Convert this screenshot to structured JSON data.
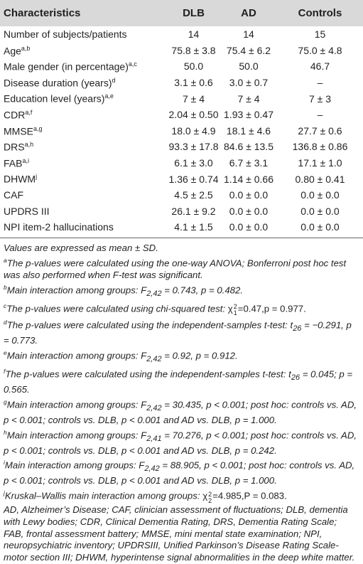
{
  "table": {
    "header": [
      "Characteristics",
      "DLB",
      "AD",
      "Controls"
    ],
    "rows": [
      {
        "label": "Number of subjects/patients",
        "cells": [
          "14",
          "14",
          "15"
        ]
      },
      {
        "label": "Age",
        "note": "a,b",
        "cells": [
          "75.8 ± 3.8",
          "75.4 ± 6.2",
          "75.0 ± 4.8"
        ]
      },
      {
        "label": "Male gender (in percentage)",
        "note": "a,c",
        "cells": [
          "50.0",
          "50.0",
          "46.7"
        ]
      },
      {
        "label": "Disease duration (years)",
        "note": "d",
        "cells": [
          "3.1 ± 0.6",
          "3.0 ± 0.7",
          "–"
        ]
      },
      {
        "label": "Education level (years)",
        "note": "a,e",
        "cells": [
          "7 ± 4",
          "7 ± 4",
          "7 ± 3"
        ]
      },
      {
        "label": "CDR",
        "note": "a,f",
        "cells": [
          "2.04 ± 0.50",
          "1.93 ± 0.47",
          "–"
        ]
      },
      {
        "label": "MMSE",
        "note": "a,g",
        "cells": [
          "18.0 ± 4.9",
          "18.1 ± 4.6",
          "27.7 ± 0.6"
        ]
      },
      {
        "label": "DRS",
        "note": "a,h",
        "cells": [
          "93.3 ± 17.8",
          "84.6 ± 13.5",
          "136.8 ± 0.86"
        ]
      },
      {
        "label": "FAB",
        "note": "a,i",
        "cells": [
          "6.1 ± 3.0",
          "6.7 ± 3.1",
          "17.1 ± 1.0"
        ]
      },
      {
        "label": "DHWM",
        "note": "j",
        "cells": [
          "1.36 ± 0.74",
          "1.14 ± 0.66",
          "0.80 ± 0.41"
        ]
      },
      {
        "label": "CAF",
        "cells": [
          "4.5 ± 2.5",
          "0.0 ± 0.0",
          "0.0 ± 0.0"
        ]
      },
      {
        "label": "UPDRS III",
        "cells": [
          "26.1 ± 9.2",
          "0.0 ± 0.0",
          "0.0 ± 0.0"
        ]
      },
      {
        "label": "NPI item-2 hallucinations",
        "cells": [
          "4.1 ± 1.5",
          "0.0 ± 0.0",
          "0.0 ± 0.0"
        ]
      }
    ]
  },
  "footnotes": [
    {
      "parts": [
        "Values are expressed as mean ± SD."
      ]
    },
    {
      "mark": "a",
      "parts": [
        "The p-values were calculated using the one-way ANOVA; Bonferroni post hoc test was also performed when F-test was significant."
      ]
    },
    {
      "mark": "b",
      "parts": [
        "Main interaction among groups: F",
        {
          "sub": "2,42"
        },
        " = 0.743, p = 0.482."
      ]
    },
    {
      "mark": "c",
      "parts": [
        "The p-values were calculated using chi-squared test: ",
        {
          "plain": "χ",
          "sup": "2",
          "sub": "1"
        },
        {
          "plain": "=0.47,p = 0.977."
        }
      ]
    },
    {
      "mark": "d",
      "parts": [
        "The p-values were calculated using the independent-samples t-test: t",
        {
          "sub": "26"
        },
        " = −0.291, p = 0.773."
      ]
    },
    {
      "mark": "e",
      "parts": [
        "Main interaction among groups: F",
        {
          "sub": "2,42"
        },
        " = 0.92, p = 0.912."
      ]
    },
    {
      "mark": "f",
      "parts": [
        "The p-values were calculated using the independent-samples t-test: t",
        {
          "sub": "26"
        },
        " = 0.045; p = 0.565."
      ]
    },
    {
      "mark": "g",
      "parts": [
        "Main interaction among groups: F",
        {
          "sub": "2,42"
        },
        " = 30.435, p < 0.001; post hoc: controls vs. AD, p < 0.001; controls vs. DLB, p < 0.001 and AD vs. DLB, p = 1.000."
      ]
    },
    {
      "mark": "h",
      "parts": [
        "Main interaction among groups: F",
        {
          "sub": "2,41"
        },
        " = 70.276, p < 0.001; post hoc: controls vs. AD, p < 0.001; controls vs. DLB, p < 0.001 and AD vs. DLB, p = 0.242."
      ]
    },
    {
      "mark": "i",
      "parts": [
        "Main interaction among groups: F",
        {
          "sub": "2,42"
        },
        " = 88.905, p < 0.001; post hoc: controls vs. AD, p < 0.001; controls vs. DLB, p < 0.001 and AD vs. DLB, p = 1.000."
      ]
    },
    {
      "mark": "j",
      "parts": [
        "Kruskal–Wallis main interaction among groups: ",
        {
          "plain": "χ",
          "sup": "2",
          "sub": "2"
        },
        {
          "plain": "=4.985,P = 0.083."
        }
      ]
    },
    {
      "parts": [
        "AD, Alzheimer’s Disease; CAF, clinician assessment of fluctuations; DLB, dementia with Lewy bodies; CDR, Clinical Dementia Rating, DRS, Dementia Rating Scale; FAB, frontal assessment battery; MMSE, mini mental state examination; NPI, neuropsychiatric inventory; UPDRSIII, Unified Parkinson’s Disease Rating Scale-motor section III; DHWM, hyperintense signal abnormalities in the deep white matter."
      ]
    }
  ]
}
